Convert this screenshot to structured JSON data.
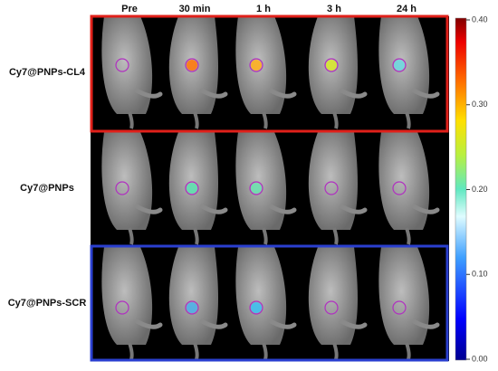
{
  "columns": [
    "Pre",
    "30 min",
    "1 h",
    "3 h",
    "24 h"
  ],
  "rows": [
    "Cy7@PNPs-CL4",
    "Cy7@PNPs",
    "Cy7@PNPs-SCR"
  ],
  "colorbar": {
    "lim": [
      0,
      0.4
    ],
    "ticks": [
      {
        "value": 0,
        "label": "0.00"
      },
      {
        "value": 0.1,
        "label": "0.10"
      },
      {
        "value": 0.2,
        "label": "0.20"
      },
      {
        "value": 0.3,
        "label": "0.30"
      },
      {
        "value": 0.4,
        "label": "0.40"
      }
    ]
  }
}
